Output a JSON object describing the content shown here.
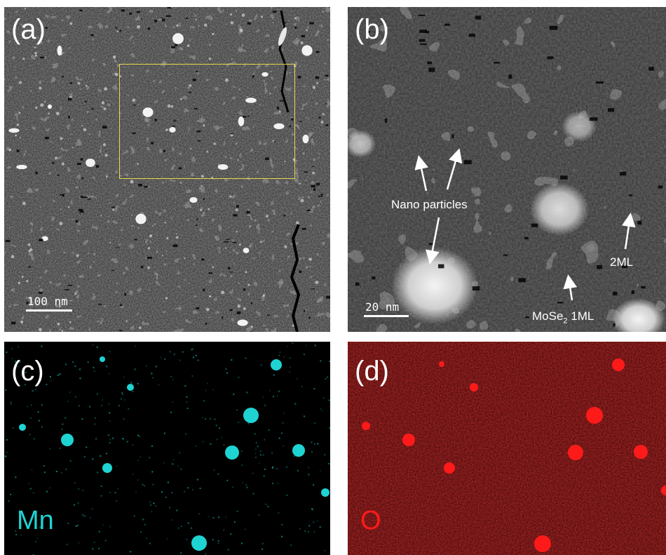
{
  "panels": {
    "a": {
      "label": "(a)",
      "scale_bar": "100 nm"
    },
    "b": {
      "label": "(b)",
      "scale_bar": "20 nm",
      "annotations": {
        "nano_particles": "Nano particles",
        "two_ml": "2ML",
        "mose2_prefix": "MoSe",
        "mose2_sub": "2",
        "mose2_suffix": " 1ML"
      }
    },
    "c": {
      "label": "(c)",
      "element": "Mn",
      "color": "#1fd3d3"
    },
    "d": {
      "label": "(d)",
      "element": "O",
      "color": "#ff1a1a"
    }
  },
  "colors": {
    "roi_box": "#e8d84a",
    "annotation": "#ffffff"
  }
}
